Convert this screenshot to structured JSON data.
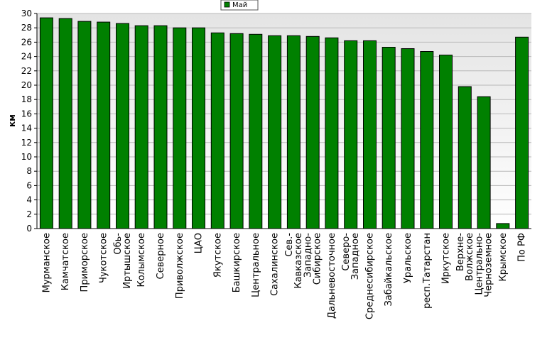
{
  "chart_data": {
    "type": "bar",
    "ylabel": "км",
    "ylim": [
      0,
      30
    ],
    "yticks": [
      0,
      2,
      4,
      6,
      8,
      10,
      12,
      14,
      16,
      18,
      20,
      22,
      24,
      26,
      28,
      30
    ],
    "grid": true,
    "legend_position": "top-center",
    "series": [
      {
        "name": "Май",
        "color": "#008000",
        "values": [
          29.4,
          29.3,
          28.9,
          28.8,
          28.6,
          28.3,
          28.3,
          28.0,
          28.0,
          27.3,
          27.2,
          27.1,
          26.9,
          26.9,
          26.8,
          26.6,
          26.2,
          26.2,
          25.3,
          25.1,
          24.7,
          24.2,
          19.8,
          18.4,
          0.7,
          26.7
        ]
      }
    ],
    "categories": [
      "Мурманское",
      "Камчатское",
      "Приморское",
      "Чукотское",
      "Обь-Иртышское",
      "Колымское",
      "Северное",
      "Приволжское",
      "ЦАО",
      "Якутское",
      "Башкирское",
      "Центральное",
      "Сахалинское",
      "Сев.-Кавказское",
      "Западно-Сибирское",
      "Дальневосточное",
      "Северо-Западное",
      "Среднесибирское",
      "Забайкальское",
      "Уральское",
      "респ.Татарстан",
      "Иркутское",
      "Верхне-Волжское",
      "Центрально-Черноземное",
      "Крымское",
      "По РФ"
    ],
    "category_label_lines": [
      [
        "Мурманское"
      ],
      [
        "Камчатское"
      ],
      [
        "Приморское"
      ],
      [
        "Чукотское"
      ],
      [
        "Обь-",
        "Иртышское"
      ],
      [
        "Колымское"
      ],
      [
        "Северное"
      ],
      [
        "Приволжское"
      ],
      [
        "ЦАО"
      ],
      [
        "Якутское"
      ],
      [
        "Башкирское"
      ],
      [
        "Центральное"
      ],
      [
        "Сахалинское"
      ],
      [
        "Сев.-",
        "Кавказское"
      ],
      [
        "Западно-",
        "Сибирское"
      ],
      [
        "Дальневосточное"
      ],
      [
        "Северо-",
        "Западное"
      ],
      [
        "Среднесибирское"
      ],
      [
        "Забайкальское"
      ],
      [
        "Уральское"
      ],
      [
        "респ.Татарстан"
      ],
      [
        "Иркутское"
      ],
      [
        "Верхне-",
        "Волжское"
      ],
      [
        "Центрально-",
        "Черноземное"
      ],
      [
        "Крымское"
      ],
      [
        "По РФ"
      ]
    ]
  }
}
